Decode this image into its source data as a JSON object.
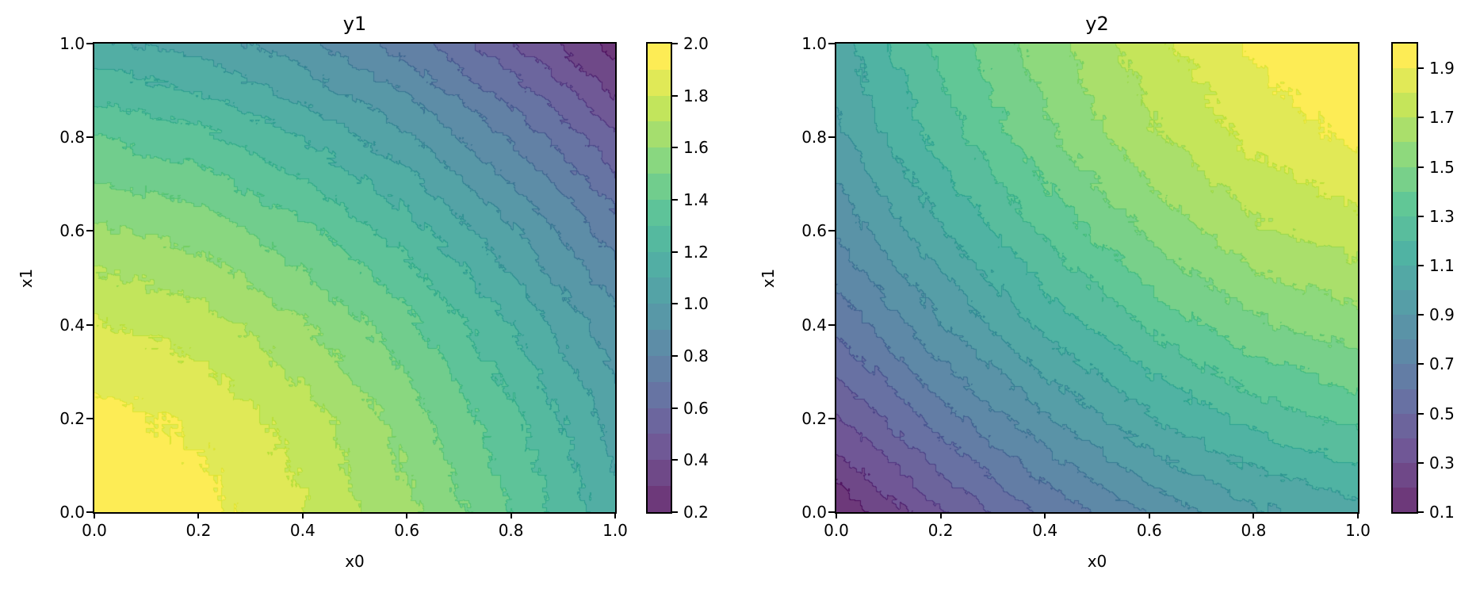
{
  "figure": {
    "background": "#ffffff",
    "description": "Two filled contour plots (viridis colormap with contour lines) shown side by side, each with its own discrete colorbar."
  },
  "style": {
    "colormap": "viridis",
    "colormap_stops": [
      "#440154",
      "#482878",
      "#3e4989",
      "#31688e",
      "#26828e",
      "#1f9e89",
      "#35b779",
      "#6ece58",
      "#b5de2b",
      "#fde725"
    ],
    "fill_alpha": 0.78,
    "axis_color": "#000000",
    "text_color": "#000000"
  },
  "chart_data": [
    {
      "type": "contourf",
      "title": "y1",
      "xlabel": "x0",
      "ylabel": "x1",
      "xlim": [
        0.0,
        1.0
      ],
      "ylim": [
        0.0,
        1.0
      ],
      "xticks": [
        "0.0",
        "0.2",
        "0.4",
        "0.6",
        "0.8",
        "1.0"
      ],
      "yticks": [
        "0.0",
        "0.2",
        "0.4",
        "0.6",
        "0.8",
        "1.0"
      ],
      "levels_min": 0.2,
      "levels_max": 2.0,
      "level_step": 0.1,
      "colorbar_ticks": [
        "2.0",
        "1.8",
        "1.6",
        "1.4",
        "1.2",
        "1.0",
        "0.8",
        "0.6",
        "0.4",
        "0.2"
      ],
      "grid_x": [
        0.0,
        0.2,
        0.4,
        0.6,
        0.8,
        1.0
      ],
      "grid_y": [
        0.0,
        0.2,
        0.4,
        0.6,
        0.8,
        1.0
      ],
      "rows_order": "bottom-to-top",
      "values": [
        [
          2.0,
          1.94,
          1.81,
          1.62,
          1.4,
          1.13
        ],
        [
          1.94,
          1.88,
          1.75,
          1.56,
          1.33,
          1.06
        ],
        [
          1.81,
          1.75,
          1.61,
          1.43,
          1.2,
          0.93
        ],
        [
          1.62,
          1.56,
          1.43,
          1.25,
          1.02,
          0.75
        ],
        [
          1.4,
          1.33,
          1.2,
          1.02,
          0.79,
          0.52
        ],
        [
          1.13,
          1.06,
          0.93,
          0.75,
          0.52,
          0.25
        ]
      ],
      "value_at_corners": {
        "bottom_left": 2.0,
        "bottom_right": 1.13,
        "top_left": 1.13,
        "top_right": 0.25
      }
    },
    {
      "type": "contourf",
      "title": "y2",
      "xlabel": "x0",
      "ylabel": "x1",
      "xlim": [
        0.0,
        1.0
      ],
      "ylim": [
        0.0,
        1.0
      ],
      "xticks": [
        "0.0",
        "0.2",
        "0.4",
        "0.6",
        "0.8",
        "1.0"
      ],
      "yticks": [
        "0.0",
        "0.2",
        "0.4",
        "0.6",
        "0.8",
        "1.0"
      ],
      "levels_min": 0.1,
      "levels_max": 2.0,
      "level_step": 0.1,
      "colorbar_ticks": [
        "1.9",
        "1.7",
        "1.5",
        "1.3",
        "1.1",
        "0.9",
        "0.7",
        "0.5",
        "0.3",
        "0.1"
      ],
      "grid_x": [
        0.0,
        0.2,
        0.4,
        0.6,
        0.8,
        1.0
      ],
      "grid_y": [
        0.0,
        0.2,
        0.4,
        0.6,
        0.8,
        1.0
      ],
      "rows_order": "bottom-to-top",
      "values": [
        [
          0.12,
          0.39,
          0.62,
          0.82,
          0.98,
          1.06
        ],
        [
          0.39,
          0.65,
          0.89,
          1.09,
          1.24,
          1.33
        ],
        [
          0.62,
          0.89,
          1.13,
          1.32,
          1.48,
          1.56
        ],
        [
          0.82,
          1.09,
          1.32,
          1.52,
          1.68,
          1.76
        ],
        [
          0.98,
          1.24,
          1.48,
          1.68,
          1.83,
          1.92
        ],
        [
          1.06,
          1.33,
          1.56,
          1.76,
          1.92,
          2.0
        ]
      ],
      "value_at_corners": {
        "bottom_left": 0.12,
        "bottom_right": 1.06,
        "top_left": 1.06,
        "top_right": 2.0
      }
    }
  ]
}
